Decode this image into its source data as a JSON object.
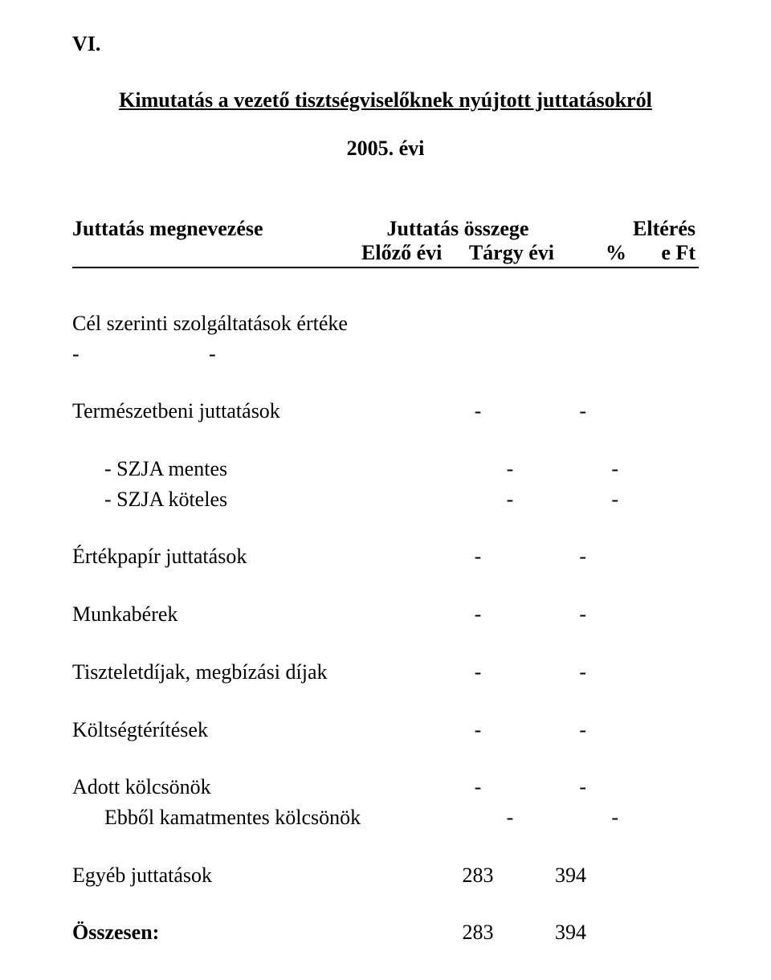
{
  "section_number": "VI.",
  "title": "Kimutatás a vezető tisztségviselőknek nyújtott juttatásokról",
  "year_line": "2005. évi",
  "header": {
    "name_label": "Juttatás megnevezése",
    "amount_label": "Juttatás összege",
    "diff_label": "Eltérés",
    "prev_year": "Előző évi",
    "curr_year": "Tárgy évi",
    "pct": "%",
    "eft": "e Ft"
  },
  "cel_line": "Cél szerinti szolgáltatások értéke",
  "dash": "-",
  "rows": {
    "termeszetbeni": {
      "label": "Természetbeni juttatások",
      "c1": "-",
      "c2": "-"
    },
    "szja_mentes": {
      "label": "- SZJA mentes",
      "c1": "-",
      "c2": "-"
    },
    "szja_koteles": {
      "label": "- SZJA köteles",
      "c1": "-",
      "c2": "-"
    },
    "ertekpapir": {
      "label": "Értékpapír juttatások",
      "c1": "-",
      "c2": "-"
    },
    "munkaberek": {
      "label": "Munkabérek",
      "c1": "-",
      "c2": "-"
    },
    "tiszteletdij": {
      "label": "Tiszteletdíjak, megbízási díjak",
      "c1": "-",
      "c2": "-"
    },
    "koltsegter": {
      "label": "Költségtérítések",
      "c1": "-",
      "c2": "-"
    },
    "adott_kolcs": {
      "label": "Adott kölcsönök",
      "c1": "-",
      "c2": "-"
    },
    "ebbol_kamat": {
      "label": "Ebből kamatmentes kölcsönök",
      "c1": "-",
      "c2": "-"
    },
    "egyeb": {
      "label": "Egyéb juttatások",
      "c1": "283",
      "c2": "394"
    },
    "osszesen": {
      "label": "Összesen:",
      "c1": "283",
      "c2": "394"
    }
  },
  "colors": {
    "text": "#000000",
    "background": "#ffffff",
    "rule": "#000000"
  },
  "typography": {
    "font_family": "Times New Roman",
    "base_size_pt": 20,
    "bold_headers": true
  }
}
